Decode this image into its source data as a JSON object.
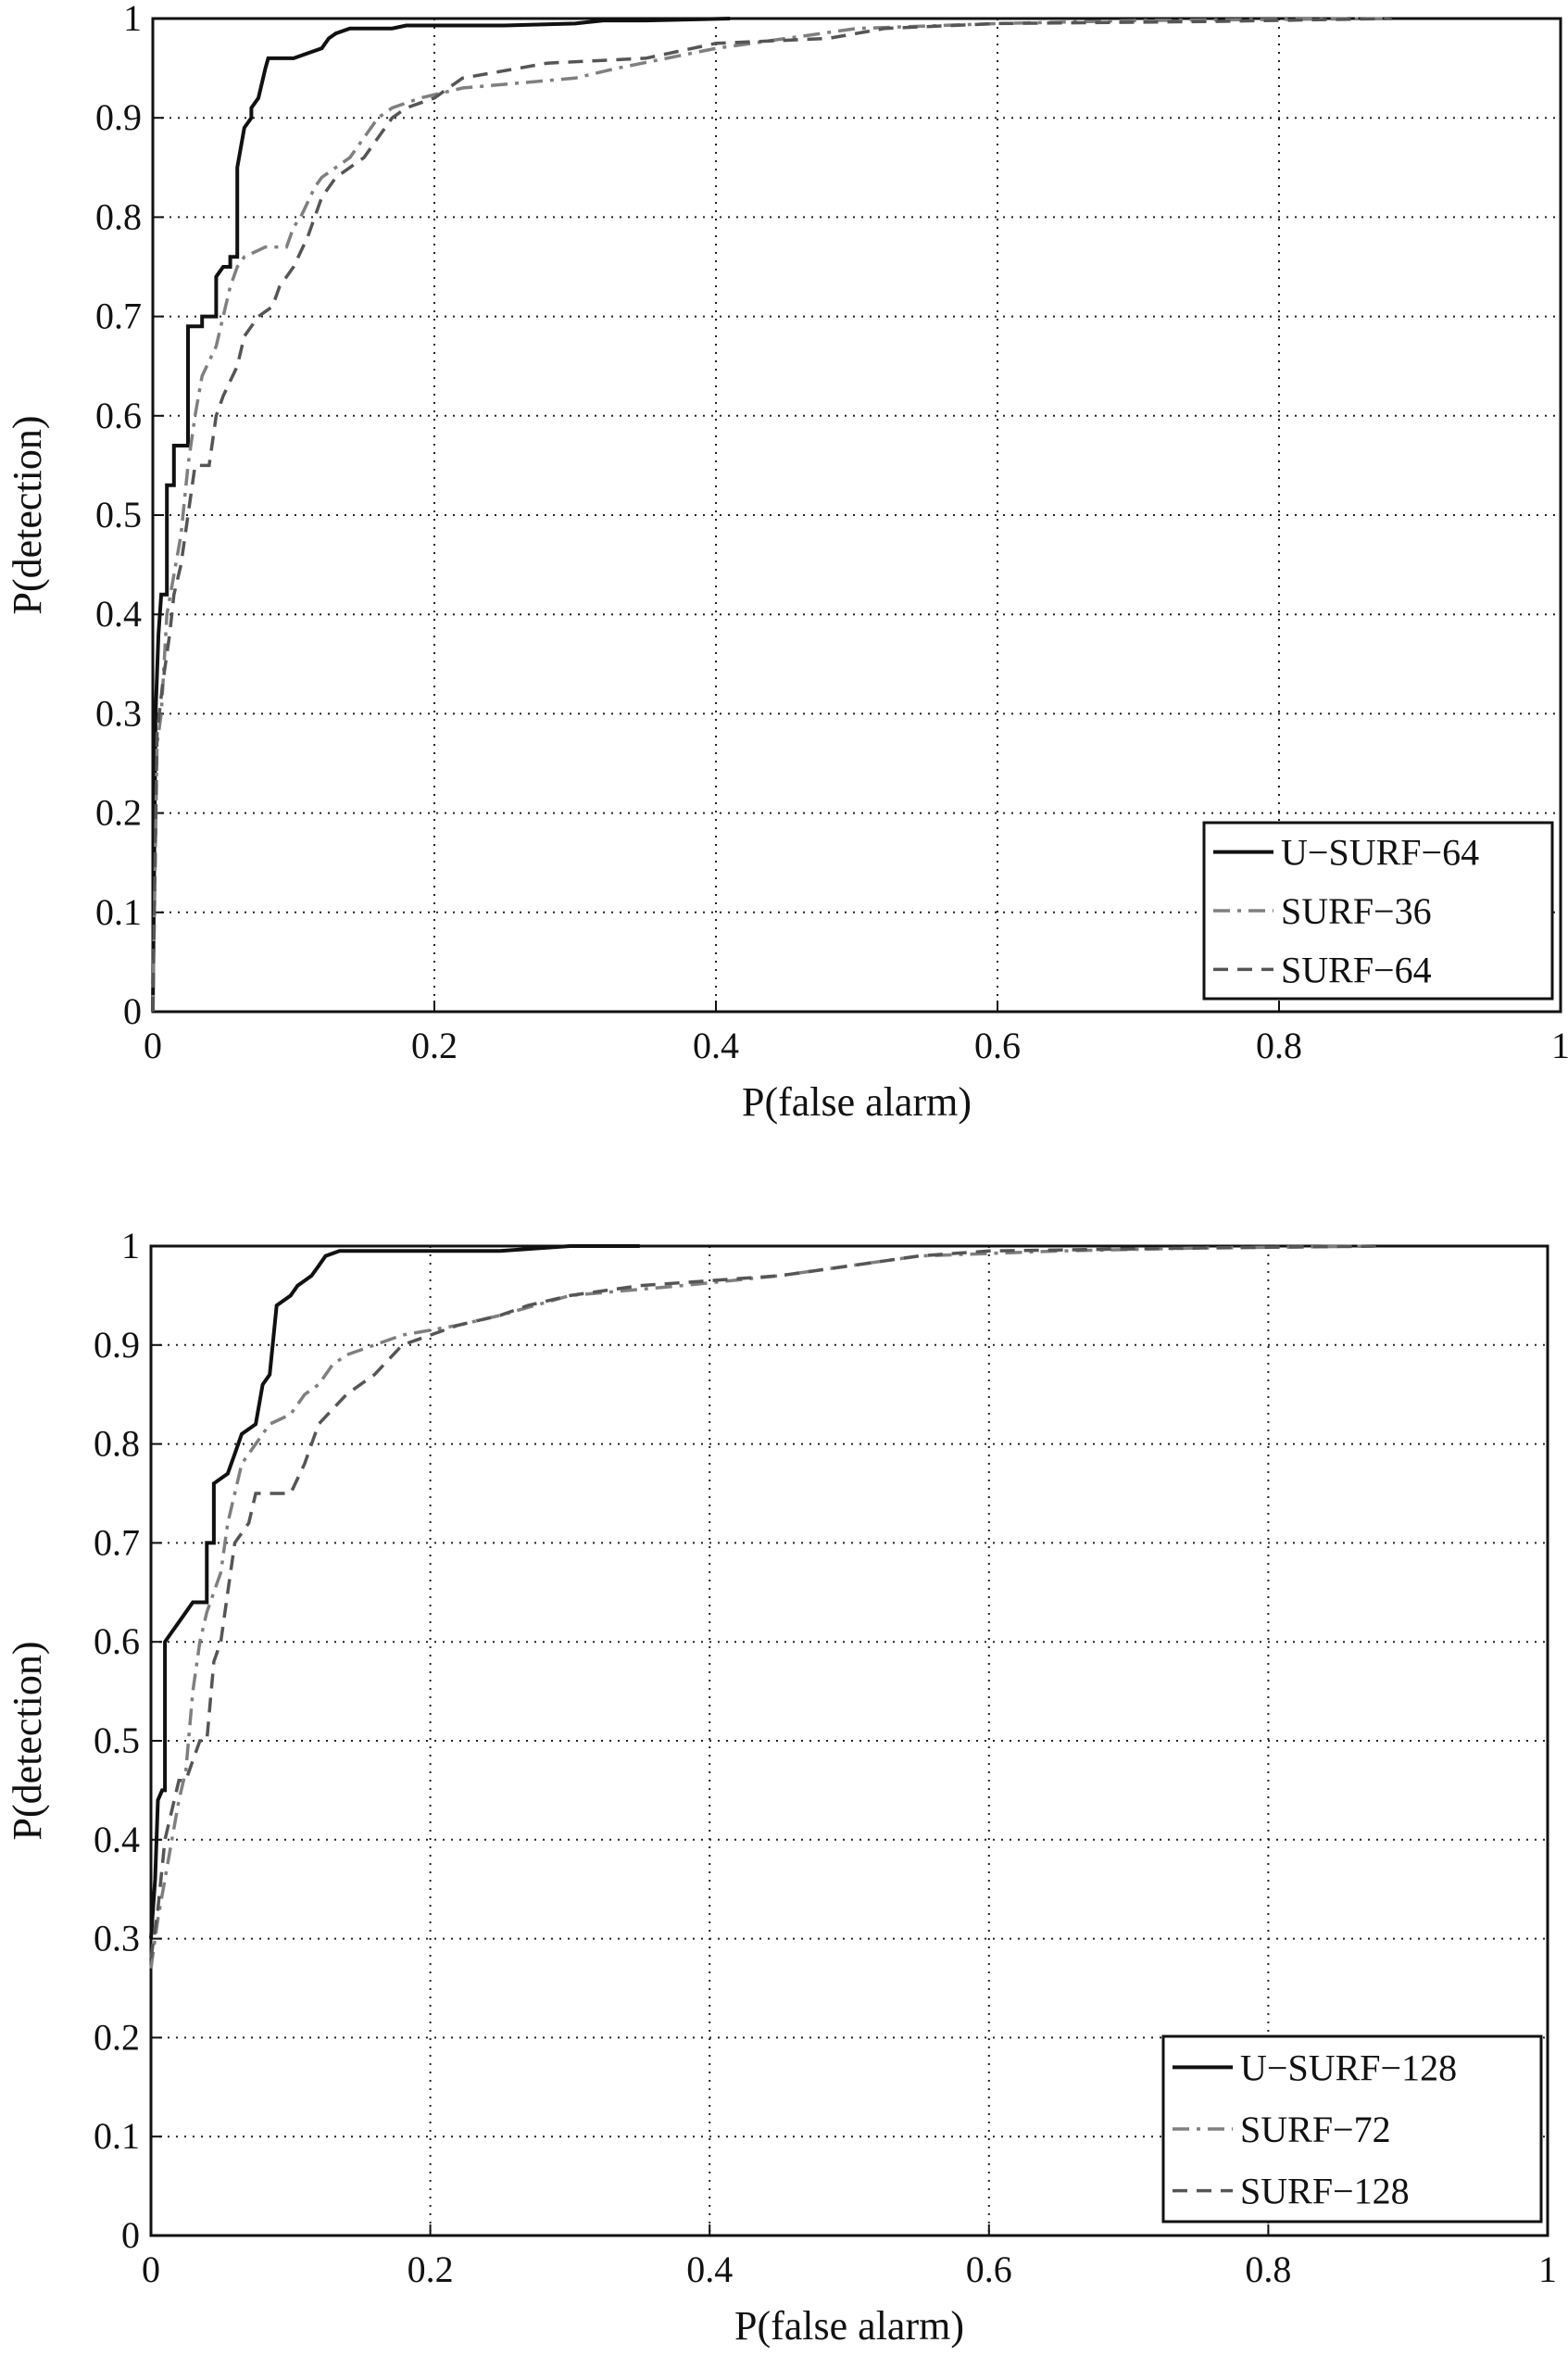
{
  "chart_data": [
    {
      "type": "line",
      "xlabel": "P(false alarm)",
      "ylabel": "P(detection)",
      "xlim": [
        0,
        1
      ],
      "ylim": [
        0,
        1
      ],
      "xticks": [
        "0",
        "0.2",
        "0.4",
        "0.6",
        "0.8",
        "1"
      ],
      "yticks": [
        "0",
        "0.1",
        "0.2",
        "0.3",
        "0.4",
        "0.5",
        "0.6",
        "0.7",
        "0.8",
        "0.9",
        "1"
      ],
      "grid": true,
      "legend_position": "bottom-right",
      "series": [
        {
          "name": "U−SURF−64",
          "style": "solid",
          "color": "#111111",
          "points": [
            [
              0,
              0
            ],
            [
              0.002,
              0.3
            ],
            [
              0.004,
              0.38
            ],
            [
              0.006,
              0.42
            ],
            [
              0.01,
              0.42
            ],
            [
              0.01,
              0.53
            ],
            [
              0.015,
              0.53
            ],
            [
              0.015,
              0.57
            ],
            [
              0.02,
              0.57
            ],
            [
              0.025,
              0.57
            ],
            [
              0.025,
              0.69
            ],
            [
              0.035,
              0.69
            ],
            [
              0.035,
              0.7
            ],
            [
              0.045,
              0.7
            ],
            [
              0.045,
              0.74
            ],
            [
              0.05,
              0.75
            ],
            [
              0.055,
              0.75
            ],
            [
              0.055,
              0.76
            ],
            [
              0.06,
              0.76
            ],
            [
              0.06,
              0.85
            ],
            [
              0.065,
              0.89
            ],
            [
              0.07,
              0.9
            ],
            [
              0.07,
              0.91
            ],
            [
              0.075,
              0.92
            ],
            [
              0.08,
              0.95
            ],
            [
              0.082,
              0.96
            ],
            [
              0.095,
              0.96
            ],
            [
              0.1,
              0.96
            ],
            [
              0.11,
              0.965
            ],
            [
              0.12,
              0.97
            ],
            [
              0.125,
              0.98
            ],
            [
              0.13,
              0.985
            ],
            [
              0.14,
              0.99
            ],
            [
              0.17,
              0.99
            ],
            [
              0.18,
              0.993
            ],
            [
              0.25,
              0.993
            ],
            [
              0.3,
              0.995
            ],
            [
              0.32,
              0.998
            ],
            [
              0.35,
              0.998
            ],
            [
              0.41,
              1.0
            ]
          ]
        },
        {
          "name": "SURF−36",
          "style": "dashdot",
          "color": "#7f7f7f",
          "points": [
            [
              0,
              0
            ],
            [
              0.003,
              0.27
            ],
            [
              0.006,
              0.3
            ],
            [
              0.01,
              0.4
            ],
            [
              0.015,
              0.44
            ],
            [
              0.02,
              0.48
            ],
            [
              0.025,
              0.55
            ],
            [
              0.03,
              0.6
            ],
            [
              0.035,
              0.64
            ],
            [
              0.045,
              0.67
            ],
            [
              0.05,
              0.7
            ],
            [
              0.055,
              0.73
            ],
            [
              0.06,
              0.75
            ],
            [
              0.065,
              0.76
            ],
            [
              0.08,
              0.77
            ],
            [
              0.095,
              0.77
            ],
            [
              0.1,
              0.79
            ],
            [
              0.105,
              0.8
            ],
            [
              0.115,
              0.83
            ],
            [
              0.12,
              0.84
            ],
            [
              0.13,
              0.85
            ],
            [
              0.14,
              0.86
            ],
            [
              0.15,
              0.88
            ],
            [
              0.16,
              0.9
            ],
            [
              0.17,
              0.91
            ],
            [
              0.19,
              0.92
            ],
            [
              0.22,
              0.93
            ],
            [
              0.3,
              0.94
            ],
            [
              0.33,
              0.95
            ],
            [
              0.4,
              0.97
            ],
            [
              0.5,
              0.99
            ],
            [
              0.6,
              0.995
            ],
            [
              0.7,
              0.998
            ],
            [
              0.88,
              1.0
            ]
          ]
        },
        {
          "name": "SURF−64",
          "style": "dashed",
          "color": "#555555",
          "points": [
            [
              0,
              0
            ],
            [
              0.003,
              0.28
            ],
            [
              0.007,
              0.33
            ],
            [
              0.012,
              0.38
            ],
            [
              0.015,
              0.42
            ],
            [
              0.02,
              0.45
            ],
            [
              0.025,
              0.5
            ],
            [
              0.03,
              0.55
            ],
            [
              0.04,
              0.55
            ],
            [
              0.045,
              0.6
            ],
            [
              0.05,
              0.62
            ],
            [
              0.06,
              0.65
            ],
            [
              0.065,
              0.68
            ],
            [
              0.075,
              0.7
            ],
            [
              0.085,
              0.71
            ],
            [
              0.09,
              0.73
            ],
            [
              0.1,
              0.75
            ],
            [
              0.11,
              0.78
            ],
            [
              0.12,
              0.82
            ],
            [
              0.13,
              0.84
            ],
            [
              0.14,
              0.85
            ],
            [
              0.15,
              0.86
            ],
            [
              0.16,
              0.88
            ],
            [
              0.17,
              0.9
            ],
            [
              0.18,
              0.91
            ],
            [
              0.2,
              0.92
            ],
            [
              0.22,
              0.94
            ],
            [
              0.26,
              0.95
            ],
            [
              0.28,
              0.955
            ],
            [
              0.35,
              0.96
            ],
            [
              0.4,
              0.975
            ],
            [
              0.48,
              0.98
            ],
            [
              0.52,
              0.99
            ],
            [
              0.6,
              0.995
            ],
            [
              0.75,
              0.997
            ],
            [
              0.88,
              1.0
            ]
          ]
        }
      ]
    },
    {
      "type": "line",
      "xlabel": "P(false alarm)",
      "ylabel": "P(detection)",
      "xlim": [
        0,
        1
      ],
      "ylim": [
        0,
        1
      ],
      "xticks": [
        "0",
        "0.2",
        "0.4",
        "0.6",
        "0.8",
        "1"
      ],
      "yticks": [
        "0",
        "0.1",
        "0.2",
        "0.3",
        "0.4",
        "0.5",
        "0.6",
        "0.7",
        "0.8",
        "0.9",
        "1"
      ],
      "grid": true,
      "legend_position": "bottom-right",
      "series": [
        {
          "name": "U−SURF−128",
          "style": "solid",
          "color": "#111111",
          "points": [
            [
              0,
              0.3
            ],
            [
              0.003,
              0.36
            ],
            [
              0.005,
              0.44
            ],
            [
              0.008,
              0.45
            ],
            [
              0.01,
              0.45
            ],
            [
              0.01,
              0.6
            ],
            [
              0.015,
              0.61
            ],
            [
              0.02,
              0.62
            ],
            [
              0.025,
              0.63
            ],
            [
              0.03,
              0.64
            ],
            [
              0.035,
              0.64
            ],
            [
              0.04,
              0.64
            ],
            [
              0.04,
              0.7
            ],
            [
              0.045,
              0.7
            ],
            [
              0.045,
              0.76
            ],
            [
              0.055,
              0.77
            ],
            [
              0.06,
              0.79
            ],
            [
              0.065,
              0.81
            ],
            [
              0.075,
              0.82
            ],
            [
              0.08,
              0.86
            ],
            [
              0.085,
              0.87
            ],
            [
              0.09,
              0.94
            ],
            [
              0.1,
              0.95
            ],
            [
              0.105,
              0.96
            ],
            [
              0.11,
              0.965
            ],
            [
              0.115,
              0.97
            ],
            [
              0.12,
              0.98
            ],
            [
              0.125,
              0.99
            ],
            [
              0.135,
              0.995
            ],
            [
              0.25,
              0.995
            ],
            [
              0.3,
              1.0
            ],
            [
              0.35,
              1.0
            ]
          ]
        },
        {
          "name": "SURF−72",
          "style": "dashdot",
          "color": "#7f7f7f",
          "points": [
            [
              0,
              0.27
            ],
            [
              0.005,
              0.32
            ],
            [
              0.01,
              0.36
            ],
            [
              0.015,
              0.4
            ],
            [
              0.02,
              0.44
            ],
            [
              0.025,
              0.47
            ],
            [
              0.03,
              0.55
            ],
            [
              0.035,
              0.6
            ],
            [
              0.04,
              0.63
            ],
            [
              0.05,
              0.67
            ],
            [
              0.055,
              0.72
            ],
            [
              0.06,
              0.75
            ],
            [
              0.065,
              0.78
            ],
            [
              0.075,
              0.8
            ],
            [
              0.085,
              0.82
            ],
            [
              0.1,
              0.83
            ],
            [
              0.11,
              0.85
            ],
            [
              0.12,
              0.86
            ],
            [
              0.13,
              0.88
            ],
            [
              0.14,
              0.89
            ],
            [
              0.16,
              0.9
            ],
            [
              0.18,
              0.91
            ],
            [
              0.22,
              0.92
            ],
            [
              0.25,
              0.93
            ],
            [
              0.3,
              0.95
            ],
            [
              0.38,
              0.96
            ],
            [
              0.45,
              0.97
            ],
            [
              0.55,
              0.99
            ],
            [
              0.65,
              0.995
            ],
            [
              0.75,
              0.998
            ],
            [
              0.88,
              1.0
            ]
          ]
        },
        {
          "name": "SURF−128",
          "style": "dashed",
          "color": "#555555",
          "points": [
            [
              0,
              0.28
            ],
            [
              0.005,
              0.33
            ],
            [
              0.01,
              0.4
            ],
            [
              0.02,
              0.46
            ],
            [
              0.025,
              0.46
            ],
            [
              0.03,
              0.48
            ],
            [
              0.035,
              0.5
            ],
            [
              0.04,
              0.5
            ],
            [
              0.045,
              0.58
            ],
            [
              0.05,
              0.6
            ],
            [
              0.055,
              0.65
            ],
            [
              0.06,
              0.7
            ],
            [
              0.07,
              0.72
            ],
            [
              0.075,
              0.75
            ],
            [
              0.1,
              0.75
            ],
            [
              0.11,
              0.78
            ],
            [
              0.12,
              0.82
            ],
            [
              0.14,
              0.85
            ],
            [
              0.16,
              0.87
            ],
            [
              0.18,
              0.9
            ],
            [
              0.2,
              0.91
            ],
            [
              0.22,
              0.92
            ],
            [
              0.25,
              0.93
            ],
            [
              0.27,
              0.94
            ],
            [
              0.3,
              0.95
            ],
            [
              0.35,
              0.96
            ],
            [
              0.4,
              0.965
            ],
            [
              0.45,
              0.97
            ],
            [
              0.5,
              0.98
            ],
            [
              0.55,
              0.99
            ],
            [
              0.6,
              0.995
            ],
            [
              0.75,
              0.998
            ],
            [
              0.88,
              1.0
            ]
          ]
        }
      ]
    }
  ]
}
